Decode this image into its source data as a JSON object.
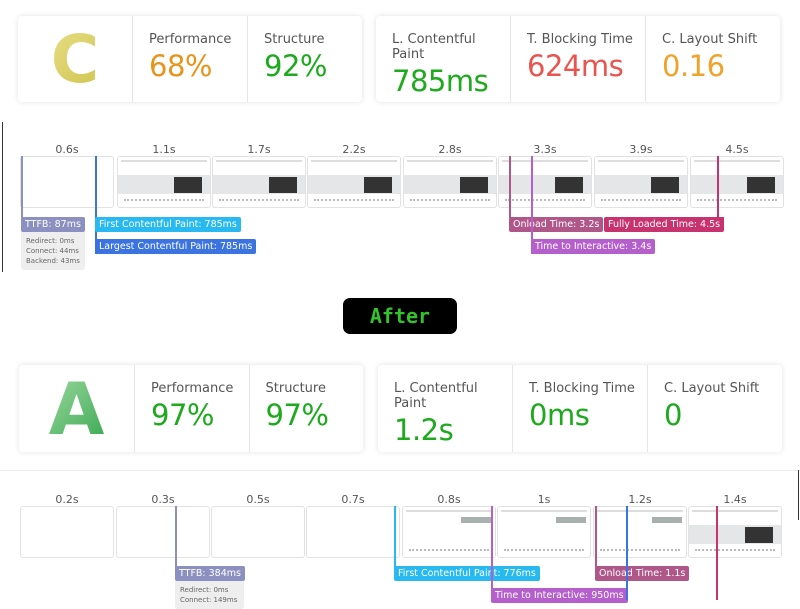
{
  "before": {
    "grade": "C",
    "grade_color": "#d4c95a",
    "performance": {
      "label": "Performance",
      "value": "68%",
      "color": "#e8941a"
    },
    "structure": {
      "label": "Structure",
      "value": "92%",
      "color": "#1daa1d"
    },
    "lcp": {
      "label": "L. Contentful Paint",
      "value": "785ms",
      "color": "#1daa1d"
    },
    "tbt": {
      "label": "T. Blocking Time",
      "value": "624ms",
      "color": "#e9544f"
    },
    "cls": {
      "label": "C. Layout Shift",
      "value": "0.16",
      "color": "#f0a22a"
    },
    "ticks": [
      "0.6s",
      "1.1s",
      "1.7s",
      "2.2s",
      "2.8s",
      "3.3s",
      "3.9s",
      "4.5s"
    ],
    "frames_blank": [
      true,
      false,
      false,
      false,
      false,
      false,
      false,
      false
    ],
    "markers": {
      "ttfb": "TTFB: 87ms",
      "redirect": "Redirect: 0ms",
      "connect": "Connect: 44ms",
      "backend": "Backend: 43ms",
      "fcp": "First Contentful Paint: 785ms",
      "lcp": "Largest Contentful Paint: 785ms",
      "onload": "Onload Time: 3.2s",
      "fully": "Fully Loaded Time: 4.5s",
      "tti": "Time to Interactive: 3.4s"
    }
  },
  "divider_label": "After",
  "after": {
    "grade": "A",
    "grade_color": "#2eaa4a",
    "performance": {
      "label": "Performance",
      "value": "97%",
      "color": "#1daa1d"
    },
    "structure": {
      "label": "Structure",
      "value": "97%",
      "color": "#1daa1d"
    },
    "lcp": {
      "label": "L. Contentful Paint",
      "value": "1.2s",
      "color": "#1daa1d"
    },
    "tbt": {
      "label": "T. Blocking Time",
      "value": "0ms",
      "color": "#1daa1d"
    },
    "cls": {
      "label": "C. Layout Shift",
      "value": "0",
      "color": "#1daa1d"
    },
    "ticks": [
      "0.2s",
      "0.3s",
      "0.5s",
      "0.7s",
      "0.8s",
      "1s",
      "1.2s",
      "1.4s"
    ],
    "markers": {
      "ttfb": "TTFB: 384ms",
      "redirect": "Redirect: 0ms",
      "connect": "Connect: 149ms",
      "fcp": "First Contentful Paint: 776ms",
      "onload": "Onload Time: 1.1s",
      "tti": "Time to Interactive: 950ms"
    }
  },
  "marker_colors": {
    "ttfb": "#8b90c0",
    "fcp": "#27b9ef",
    "lcp": "#3b73e0",
    "onload": "#b0578a",
    "fully": "#c8336f",
    "tti": "#b45fcc"
  }
}
